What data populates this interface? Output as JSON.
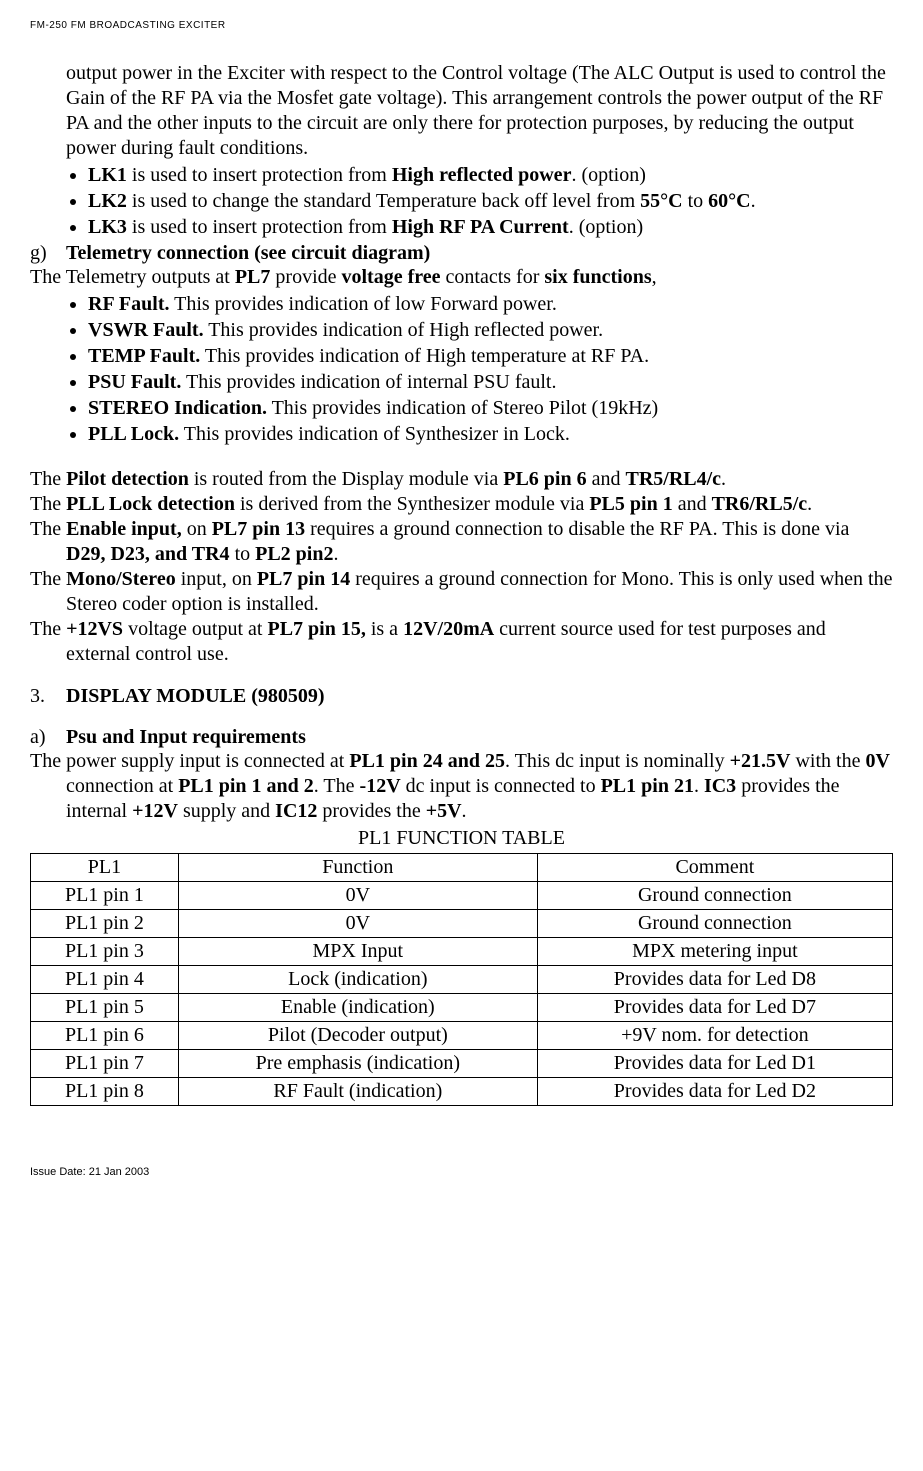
{
  "header": "FM-250 FM BROADCASTING EXCITER",
  "footer": "Issue Date: 21 Jan 2003",
  "intro_para": "output power in the Exciter with respect to the Control voltage (The ALC Output is used to control the Gain of the RF PA via the Mosfet gate voltage). This arrangement controls the power output of the RF PA and the other inputs to the circuit are only there for protection purposes, by reducing the output power during fault conditions.",
  "lk_bullets": [
    {
      "b": "LK1",
      "mid": " is used to insert protection from ",
      "b2": "High reflected power",
      "tail": ". (option)"
    },
    {
      "b": "LK2",
      "mid": " is used to change the standard Temperature back off level from ",
      "b2": "55°C",
      "mid2": " to ",
      "b3": "60°C",
      "tail": "."
    },
    {
      "b": "LK3",
      "mid": " is used to insert protection from ",
      "b2": "High RF PA Current",
      "tail": ". (option)"
    }
  ],
  "section_g_label": "g)",
  "section_g_title": "Telemetry connection (see circuit diagram)",
  "telemetry_pre": "The Telemetry outputs at ",
  "telemetry_pl": "PL7",
  "telemetry_mid": " provide ",
  "telemetry_vf": "voltage free",
  "telemetry_mid2": " contacts for ",
  "telemetry_sf": "six functions",
  "telemetry_tail": ",",
  "fault_bullets": [
    {
      "b": "RF Fault.",
      "tail": "  This provides indication of low Forward power."
    },
    {
      "b": "VSWR Fault.",
      "tail": " This provides indication of High reflected power."
    },
    {
      "b": "TEMP Fault.",
      "tail": " This provides indication of High temperature at RF PA."
    },
    {
      "b": "PSU Fault.",
      "tail": " This provides indication of internal PSU fault."
    },
    {
      "b": "STEREO Indication.",
      "tail": " This provides indication of Stereo Pilot (19kHz)"
    },
    {
      "b": "PLL Lock.",
      "tail": " This provides indication of Synthesizer in Lock."
    }
  ],
  "routing": [
    {
      "pre": "The ",
      "b1": "Pilot detection",
      "mid": " is routed from the Display module via ",
      "b2": "PL6 pin 6",
      "mid2": " and ",
      "b3": "TR5/RL4/c",
      "tail": "."
    },
    {
      "pre": "The ",
      "b1": "PLL Lock detection",
      "mid": " is derived from the Synthesizer module via ",
      "b2": "PL5 pin 1",
      "mid2": " and ",
      "b3": "TR6/RL5/c",
      "tail": "."
    },
    {
      "pre": "The ",
      "b1": "Enable input,",
      "mid": " on ",
      "b2": "PL7 pin 13",
      "mid2": " requires a ground connection to disable the RF PA. This is done via ",
      "b3": "D29, D23, and TR4",
      "mid3": " to ",
      "b4": "PL2 pin2",
      "tail": "."
    },
    {
      "pre": "The ",
      "b1": "Mono/Stereo",
      "mid": " input, on ",
      "b2": "PL7 pin 14",
      "mid2": " requires a ground connection for Mono. This is only used when the Stereo coder option is installed.",
      "tail": ""
    },
    {
      "pre": "The ",
      "b1": "+12VS",
      "mid": " voltage output at ",
      "b2": "PL7 pin 15,",
      "mid2": " is a ",
      "b3": "12V/20mA",
      "mid3": " current source used for test purposes and external control use.",
      "tail": ""
    }
  ],
  "section_3_label": "3.",
  "section_3_title": "DISPLAY MODULE (980509)",
  "section_a_label": "a)",
  "section_a_title": "Psu and Input requirements",
  "psu_para": {
    "t1": "The power supply input is connected at ",
    "b1": "PL1 pin 24 and 25",
    "t2": ". This dc input is nominally ",
    "b2": "+21.5V",
    "t3": " with the ",
    "b3": "0V",
    "t4": " connection at ",
    "b4": "PL1 pin 1 and 2",
    "t5": ". The ",
    "b5": "-12V",
    "t6": " dc input is connected to ",
    "b6": "PL1 pin 21",
    "t7": ". ",
    "b7": "IC3",
    "t8": " provides the internal ",
    "b8": "+12V",
    "t9": " supply and ",
    "b9": "IC12",
    "t10": " provides the ",
    "b10": "+5V",
    "t11": "."
  },
  "table_caption": "PL1 FUNCTION TABLE",
  "table_head": [
    "PL1",
    "Function",
    "Comment"
  ],
  "table_rows": [
    [
      "PL1 pin 1",
      "0V",
      "Ground connection"
    ],
    [
      "PL1 pin 2",
      "0V",
      "Ground connection"
    ],
    [
      "PL1 pin 3",
      "MPX Input",
      "MPX metering input"
    ],
    [
      "PL1 pin 4",
      "Lock (indication)",
      "Provides data for Led D8"
    ],
    [
      "PL1 pin 5",
      "Enable (indication)",
      "Provides data for Led D7"
    ],
    [
      "PL1 pin 6",
      "Pilot (Decoder output)",
      "+9V nom. for detection"
    ],
    [
      "PL1 pin 7",
      "Pre emphasis (indication)",
      "Provides data for Led D1"
    ],
    [
      "PL1 pin 8",
      "RF Fault (indication)",
      "Provides data for Led D2"
    ]
  ]
}
